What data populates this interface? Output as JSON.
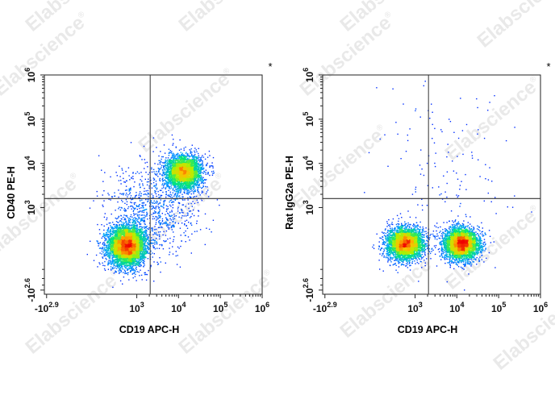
{
  "watermark": "Elabscience",
  "watermark_mark": "®",
  "chart_data": [
    {
      "type": "scatter",
      "xlabel": "CD19 APC-H",
      "ylabel": "CD40 PE-H",
      "corner_mark": "*",
      "x_ticks": [
        {
          "value": -794,
          "label": "-10",
          "sup": "2.9"
        },
        {
          "value": 1000,
          "label": "10",
          "sup": "3"
        },
        {
          "value": 10000,
          "label": "10",
          "sup": "4"
        },
        {
          "value": 100000,
          "label": "10",
          "sup": "5"
        },
        {
          "value": 1000000,
          "label": "10",
          "sup": "6"
        }
      ],
      "y_ticks": [
        {
          "value": -398,
          "label": "-10",
          "sup": "2.6"
        },
        {
          "value": 1000,
          "label": "10",
          "sup": "3"
        },
        {
          "value": 10000,
          "label": "10",
          "sup": "4"
        },
        {
          "value": 100000,
          "label": "10",
          "sup": "5"
        },
        {
          "value": 1000000,
          "label": "10",
          "sup": "6"
        }
      ],
      "xlim": [
        -900,
        1000000
      ],
      "ylim": [
        -500,
        1000000
      ],
      "gate": {
        "x": 2100,
        "y": 1600
      },
      "populations": [
        {
          "x": 560,
          "y": 100,
          "n": 5200,
          "spread_x": 0.14,
          "spread_y": 0.15
        },
        {
          "x": 13000,
          "y": 6500,
          "n": 3200,
          "spread_x": 0.14,
          "spread_y": 0.13
        },
        {
          "x": 2500,
          "y": 900,
          "n": 900,
          "spread_x": 0.35,
          "spread_y": 0.35
        }
      ]
    },
    {
      "type": "scatter",
      "xlabel": "CD19 APC-H",
      "ylabel": "Rat IgG2a PE-H",
      "corner_mark": "*",
      "x_ticks": [
        {
          "value": -794,
          "label": "-10",
          "sup": "2.9"
        },
        {
          "value": 1000,
          "label": "10",
          "sup": "3"
        },
        {
          "value": 10000,
          "label": "10",
          "sup": "4"
        },
        {
          "value": 100000,
          "label": "10",
          "sup": "5"
        },
        {
          "value": 1000000,
          "label": "10",
          "sup": "6"
        }
      ],
      "y_ticks": [
        {
          "value": -398,
          "label": "-10",
          "sup": "2.6"
        },
        {
          "value": 1000,
          "label": "10",
          "sup": "3"
        },
        {
          "value": 10000,
          "label": "10",
          "sup": "4"
        },
        {
          "value": 100000,
          "label": "10",
          "sup": "5"
        },
        {
          "value": 1000000,
          "label": "10",
          "sup": "6"
        }
      ],
      "xlim": [
        -900,
        1000000
      ],
      "ylim": [
        -500,
        1000000
      ],
      "gate": {
        "x": 2100,
        "y": 1600
      },
      "populations": [
        {
          "x": 560,
          "y": 120,
          "n": 3600,
          "spread_x": 0.14,
          "spread_y": 0.12
        },
        {
          "x": 12500,
          "y": 120,
          "n": 3800,
          "spread_x": 0.13,
          "spread_y": 0.12
        },
        {
          "x": 5000,
          "y": 8000,
          "n": 160,
          "spread_x": 0.5,
          "spread_y": 0.9
        }
      ]
    }
  ]
}
